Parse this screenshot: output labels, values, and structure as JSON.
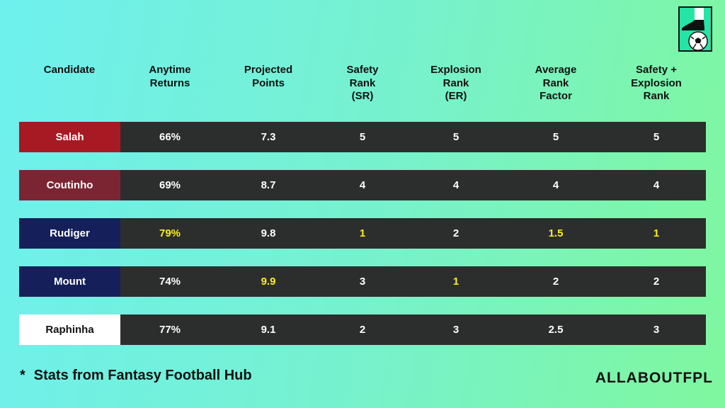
{
  "headers": [
    "Candidate",
    "Anytime\nReturns",
    "Projected\nPoints",
    "Safety\nRank\n(SR)",
    "Explosion\nRank\n(ER)",
    "Average\nRank\nFactor",
    "Safety +\nExplosion\nRank"
  ],
  "rows": [
    {
      "name": "Salah",
      "color": "#a71a24",
      "name_text_color": "#ffffff",
      "values": [
        "66%",
        "7.3",
        "5",
        "5",
        "5",
        "5"
      ],
      "highlight": [
        false,
        false,
        false,
        false,
        false,
        false
      ]
    },
    {
      "name": "Coutinho",
      "color": "#7c2532",
      "name_text_color": "#ffffff",
      "values": [
        "69%",
        "8.7",
        "4",
        "4",
        "4",
        "4"
      ],
      "highlight": [
        false,
        false,
        false,
        false,
        false,
        false
      ]
    },
    {
      "name": "Rudiger",
      "color": "#15205a",
      "name_text_color": "#ffffff",
      "values": [
        "79%",
        "9.8",
        "1",
        "2",
        "1.5",
        "1"
      ],
      "highlight": [
        true,
        false,
        true,
        false,
        true,
        true
      ]
    },
    {
      "name": "Mount",
      "color": "#15205a",
      "name_text_color": "#ffffff",
      "values": [
        "74%",
        "9.9",
        "3",
        "1",
        "2",
        "2"
      ],
      "highlight": [
        false,
        true,
        false,
        true,
        false,
        false
      ]
    },
    {
      "name": "Raphinha",
      "color": "#ffffff",
      "name_text_color": "#111111",
      "values": [
        "77%",
        "9.1",
        "2",
        "3",
        "2.5",
        "3"
      ],
      "highlight": [
        false,
        false,
        false,
        false,
        false,
        false
      ]
    }
  ],
  "footnote": {
    "star": "*",
    "text": "Stats from Fantasy Football Hub"
  },
  "brand": "ALLABOUTFPL",
  "colors": {
    "highlight": "#ffee1a",
    "row_background": "#2c2e2d",
    "logo_background": "#26e4a6"
  },
  "logo_icon": "boot-on-football-icon"
}
